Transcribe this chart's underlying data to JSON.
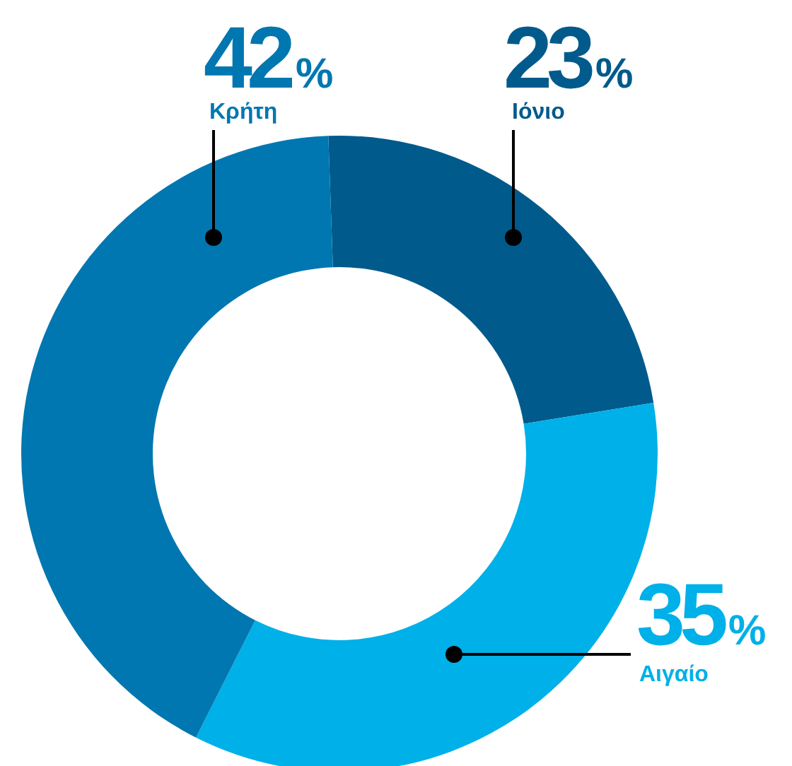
{
  "chart_data": {
    "type": "donut",
    "categories": [
      "Ιόνιο",
      "Αιγαίο",
      "Κρήτη"
    ],
    "values": [
      23,
      35,
      42
    ],
    "value_labels": [
      "23%",
      "35%",
      "42%"
    ],
    "colors": [
      "#005a8c",
      "#00b0e8",
      "#0077b0"
    ]
  }
}
